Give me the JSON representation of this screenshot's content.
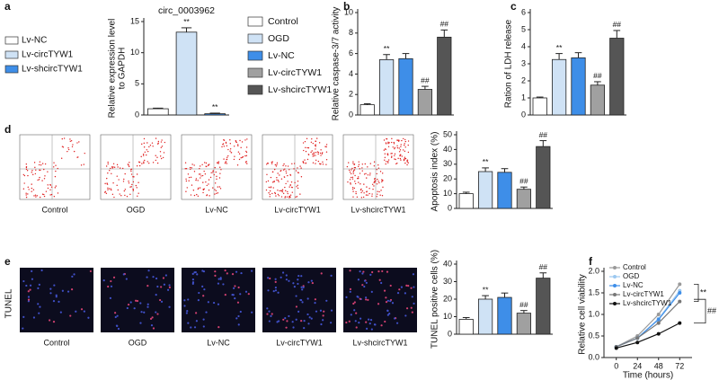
{
  "image_row_label": "TUNEL",
  "chart_data": [
    {
      "panel": "a",
      "type": "bar",
      "title": "circ_0003962",
      "ylabel": [
        "Relative expression level",
        "to GAPDH"
      ],
      "categories": [
        "Lv-NC",
        "Lv-circTYW1",
        "Lv-shcircTYW1"
      ],
      "values": [
        1,
        13.3,
        0.2
      ],
      "errors": [
        0.1,
        0.7,
        0.1
      ],
      "colors": [
        "#ffffff",
        "#cfe2f5",
        "#3e8ee8"
      ],
      "sig": [
        null,
        "**",
        "**"
      ],
      "ylim": [
        0,
        15
      ],
      "yticks": [
        0,
        5,
        10,
        15
      ]
    },
    {
      "panel": "b",
      "type": "bar",
      "ylabel": [
        "Relative caspase-3/7 activity"
      ],
      "categories": [
        "Control",
        "OGD",
        "Lv-NC",
        "Lv-circTYW1",
        "Lv-shcircTYW1"
      ],
      "values": [
        1,
        5.4,
        5.5,
        2.5,
        7.6
      ],
      "errors": [
        0.1,
        0.5,
        0.5,
        0.3,
        0.7
      ],
      "colors": [
        "#ffffff",
        "#cfe2f5",
        "#3e8ee8",
        "#a0a0a0",
        "#555555"
      ],
      "sig": [
        null,
        "**",
        null,
        "##",
        "##"
      ],
      "ylim": [
        0,
        10
      ],
      "yticks": [
        0,
        2,
        4,
        6,
        8,
        10
      ]
    },
    {
      "panel": "c",
      "type": "bar",
      "ylabel": [
        "Ration of LDH release"
      ],
      "categories": [
        "Control",
        "OGD",
        "Lv-NC",
        "Lv-circTYW1",
        "Lv-shcircTYW1"
      ],
      "values": [
        1,
        3.25,
        3.35,
        1.75,
        4.5
      ],
      "errors": [
        0.05,
        0.35,
        0.3,
        0.2,
        0.45
      ],
      "colors": [
        "#ffffff",
        "#cfe2f5",
        "#3e8ee8",
        "#a0a0a0",
        "#555555"
      ],
      "sig": [
        null,
        "**",
        null,
        "##",
        "##"
      ],
      "ylim": [
        0,
        6
      ],
      "yticks": [
        0,
        1,
        2,
        3,
        4,
        5,
        6
      ]
    },
    {
      "panel": "d",
      "type": "bar",
      "ylabel": [
        "Apoptosis index (%)"
      ],
      "categories": [
        "Control",
        "OGD",
        "Lv-NC",
        "Lv-circTYW1",
        "Lv-shcircTYW1"
      ],
      "values": [
        10,
        25,
        24.5,
        13,
        42
      ],
      "errors": [
        1,
        2.5,
        2.5,
        1.5,
        4
      ],
      "colors": [
        "#ffffff",
        "#cfe2f5",
        "#3e8ee8",
        "#a0a0a0",
        "#555555"
      ],
      "sig": [
        null,
        "**",
        null,
        "##",
        "##"
      ],
      "ylim": [
        0,
        50
      ],
      "yticks": [
        0,
        10,
        20,
        30,
        40,
        50
      ]
    },
    {
      "panel": "e",
      "type": "bar",
      "ylabel": [
        "TUNEL positive cells (%)"
      ],
      "categories": [
        "Control",
        "OGD",
        "Lv-NC",
        "Lv-circTYW1",
        "Lv-shcircTYW1"
      ],
      "values": [
        8.5,
        20,
        21,
        12,
        32
      ],
      "errors": [
        1,
        2,
        2.5,
        1.5,
        3
      ],
      "colors": [
        "#ffffff",
        "#cfe2f5",
        "#3e8ee8",
        "#a0a0a0",
        "#555555"
      ],
      "sig": [
        null,
        "**",
        null,
        "##",
        "##"
      ],
      "ylim": [
        0,
        40
      ],
      "yticks": [
        0,
        10,
        20,
        30,
        40
      ]
    },
    {
      "panel": "f",
      "type": "line",
      "xlabel": "Time (hours)",
      "ylabel": [
        "Relative cell viability"
      ],
      "x": [
        0,
        24,
        48,
        72
      ],
      "xlim": [
        -14,
        86
      ],
      "xticks": [
        0,
        24,
        48,
        72
      ],
      "ylim": [
        0,
        2
      ],
      "yticks": [
        {
          "value": 0,
          "label": "0.0"
        },
        0.5,
        {
          "value": 1,
          "label": "1.0"
        },
        1.5,
        {
          "value": 2,
          "label": "2.0"
        }
      ],
      "series": [
        {
          "name": "Control",
          "color": "#999999",
          "values": [
            0.25,
            0.5,
            1.0,
            1.7
          ]
        },
        {
          "name": "OGD",
          "color": "#9cc8f0",
          "values": [
            0.25,
            0.45,
            0.9,
            1.55
          ]
        },
        {
          "name": "Lv-NC",
          "color": "#3e8ee8",
          "values": [
            0.25,
            0.45,
            0.88,
            1.5
          ]
        },
        {
          "name": "Lv-circTYW1",
          "color": "#777777",
          "values": [
            0.25,
            0.45,
            0.8,
            1.3
          ]
        },
        {
          "name": "Lv-shcircTYW1",
          "color": "#111111",
          "values": [
            0.22,
            0.35,
            0.55,
            0.8
          ]
        }
      ],
      "annotations": [
        "**",
        "##"
      ]
    }
  ]
}
